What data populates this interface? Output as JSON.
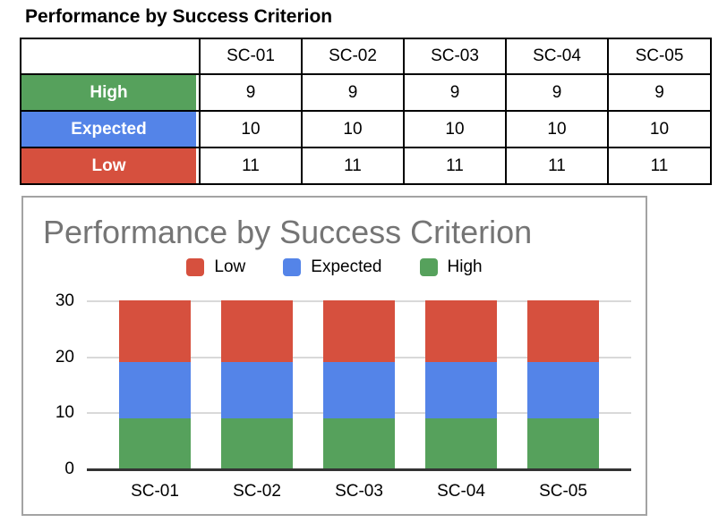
{
  "page": {
    "title": "Performance by Success Criterion"
  },
  "colors": {
    "red": "#D6503E",
    "blue": "#5484E8",
    "green": "#56A15C",
    "chart_title_gray": "#757575",
    "gridline": "#D9D9D9",
    "axis": "#333333",
    "card_border": "#A3A3A3"
  },
  "table": {
    "columns": [
      "SC-01",
      "SC-02",
      "SC-03",
      "SC-04",
      "SC-05"
    ],
    "rows": [
      {
        "label": "High",
        "values": [
          9,
          9,
          9,
          9,
          9
        ]
      },
      {
        "label": "Expected",
        "values": [
          10,
          10,
          10,
          10,
          10
        ]
      },
      {
        "label": "Low",
        "values": [
          11,
          11,
          11,
          11,
          11
        ]
      }
    ]
  },
  "chart": {
    "title": "Performance by Success Criterion",
    "legend": [
      {
        "label": "Low"
      },
      {
        "label": "Expected"
      },
      {
        "label": "High"
      }
    ]
  },
  "chart_data": {
    "type": "bar",
    "stacked": true,
    "title": "Performance by Success Criterion",
    "categories": [
      "SC-01",
      "SC-02",
      "SC-03",
      "SC-04",
      "SC-05"
    ],
    "series": [
      {
        "name": "High",
        "color": "#56A15C",
        "values": [
          9,
          9,
          9,
          9,
          9
        ]
      },
      {
        "name": "Expected",
        "color": "#5484E8",
        "values": [
          10,
          10,
          10,
          10,
          10
        ]
      },
      {
        "name": "Low",
        "color": "#D6503E",
        "values": [
          11,
          11,
          11,
          11,
          11
        ]
      }
    ],
    "xlabel": "",
    "ylabel": "",
    "ylim": [
      0,
      30
    ],
    "yticks": [
      0,
      10,
      20,
      30
    ],
    "grid": true,
    "legend_position": "top",
    "legend_order": [
      "Low",
      "Expected",
      "High"
    ]
  }
}
